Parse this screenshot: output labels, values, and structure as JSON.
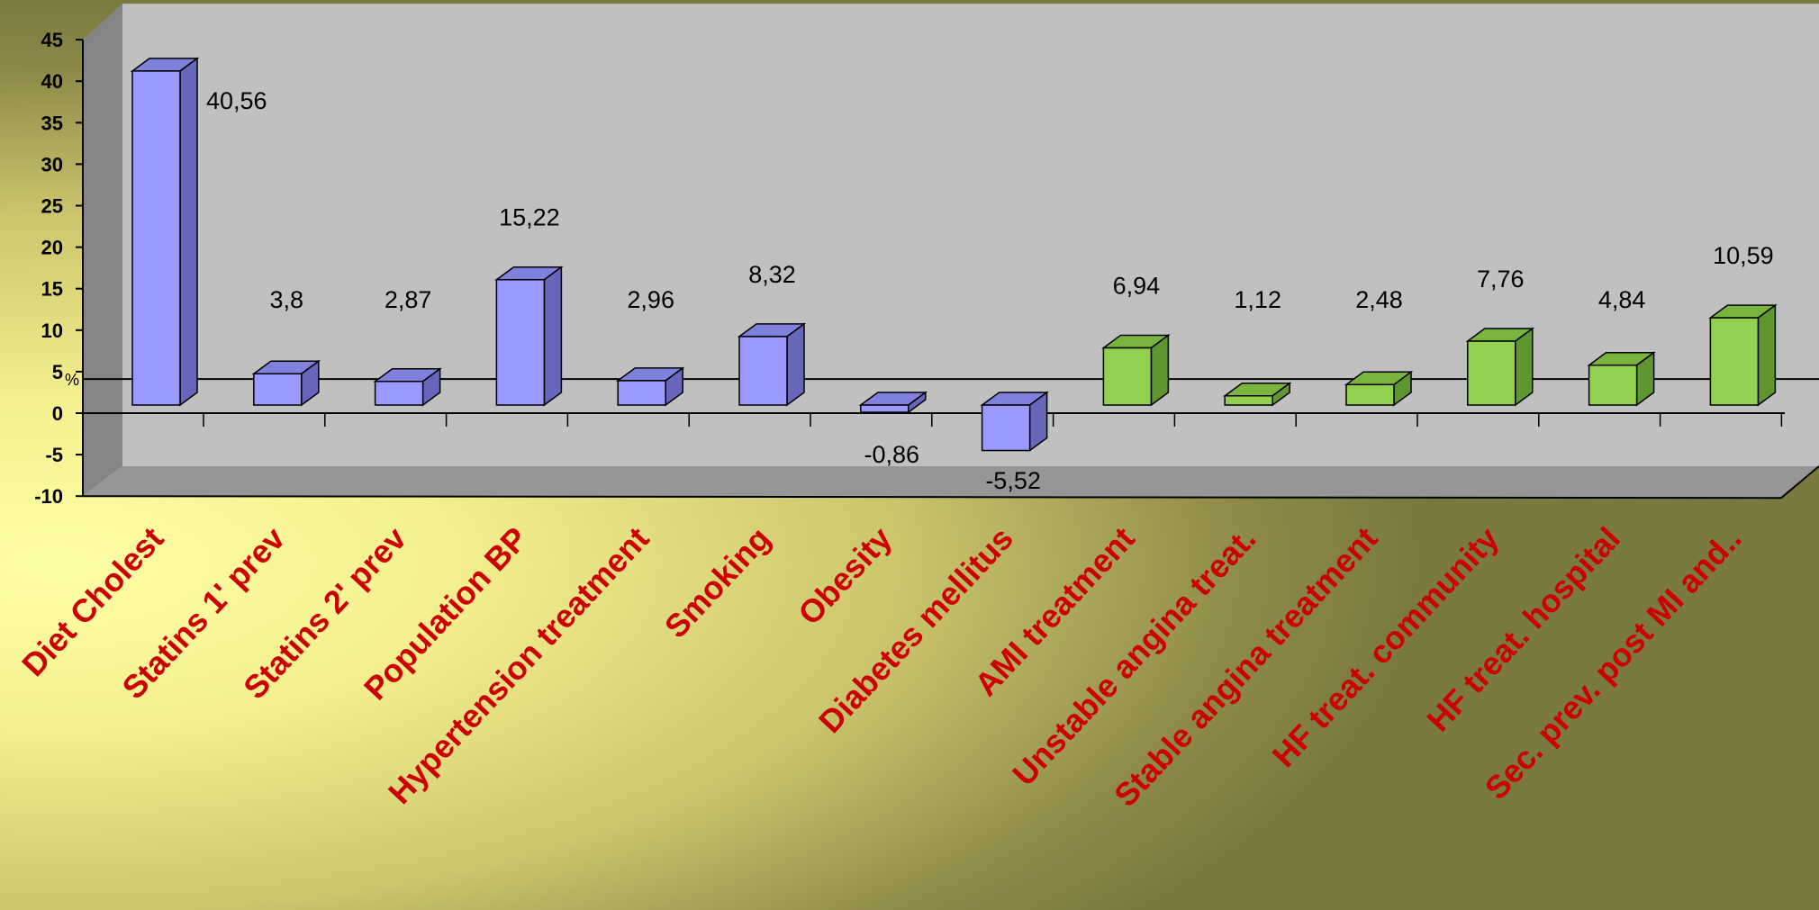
{
  "chart_data": {
    "type": "bar",
    "title": "",
    "xlabel": "",
    "ylabel": "",
    "unit_label": "%",
    "ylim": [
      -10,
      45
    ],
    "yticks": [
      -10,
      -5,
      0,
      5,
      10,
      15,
      20,
      25,
      30,
      35,
      40,
      45
    ],
    "grid": false,
    "reference_line": 4,
    "categories": [
      "Diet Cholest",
      "Statins 1' prev",
      "Statins 2' prev",
      "Population BP",
      "Hypertension treatment",
      "Smoking",
      "Obesity",
      "Diabetes mellitus",
      "AMI treatment",
      "Unstable angina treat.",
      "Stable angina treatment",
      "HF treat. community",
      "HF treat. hospital",
      "Sec. prev. post MI and.."
    ],
    "values": [
      40.56,
      3.8,
      2.87,
      15.22,
      2.96,
      8.32,
      -0.86,
      -5.52,
      6.94,
      1.12,
      2.48,
      7.76,
      4.84,
      10.59
    ],
    "data_labels": [
      "40,56",
      "3,8",
      "2,87",
      "15,22",
      "2,96",
      "8,32",
      "-0,86",
      "-5,52",
      "6,94",
      "1,12",
      "2,48",
      "7,76",
      "4,84",
      "10,59"
    ],
    "bar_groups": [
      "blue",
      "blue",
      "blue",
      "blue",
      "blue",
      "blue",
      "blue",
      "blue",
      "green",
      "green",
      "green",
      "green",
      "green",
      "green"
    ],
    "colors": {
      "blue": {
        "front": "#9999ff",
        "side": "#6666bb",
        "top": "#8080dd"
      },
      "green": {
        "front": "#92d050",
        "side": "#5f9630",
        "top": "#79b43e"
      },
      "plot_back": "#c0c0c0",
      "plot_wall": "#858585",
      "plot_floor": "#969696",
      "category_text": "#cc0000"
    }
  }
}
